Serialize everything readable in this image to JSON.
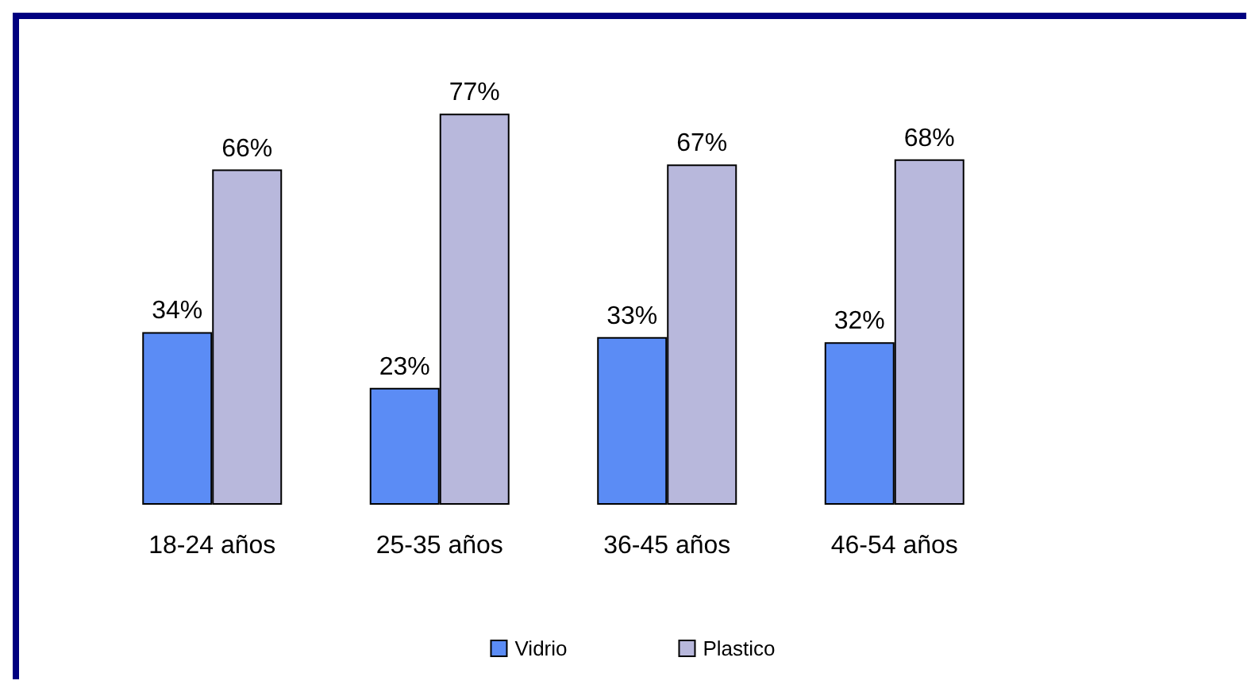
{
  "chart_data": {
    "type": "bar",
    "categories": [
      "18-24 años",
      "25-35 años",
      "36-45 años",
      "46-54 años"
    ],
    "series": [
      {
        "name": "Vidrio",
        "color": "#5b8cf5",
        "values": [
          34,
          23,
          33,
          32
        ],
        "value_labels": [
          "34%",
          "23%",
          "33%",
          "32%"
        ]
      },
      {
        "name": "Plastico",
        "color": "#b8b8dc",
        "values": [
          66,
          77,
          67,
          68
        ],
        "value_labels": [
          "66%",
          "77%",
          "67%",
          "68%"
        ]
      }
    ],
    "legend": "bottom"
  }
}
